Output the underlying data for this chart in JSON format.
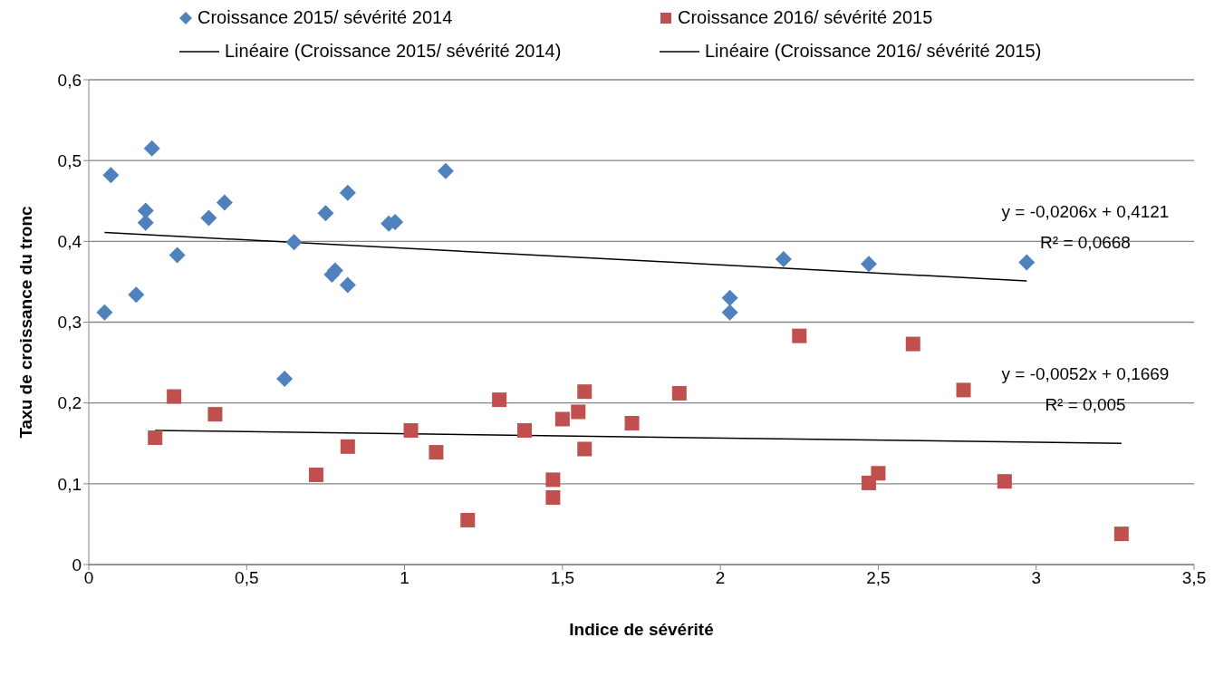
{
  "chart_data": {
    "type": "scatter",
    "xlabel": "Indice de sévérité",
    "ylabel": "Taxu de croissance du tronc",
    "xlim": [
      0,
      3.5
    ],
    "xticks": [
      0,
      {
        "value": 0.5,
        "label": "0,5"
      },
      1,
      {
        "value": 1.5,
        "label": "1,5"
      },
      2,
      {
        "value": 2.5,
        "label": "2,5"
      },
      3,
      {
        "value": 3.5,
        "label": "3,5"
      }
    ],
    "ylim": [
      0,
      0.6
    ],
    "yticks": [
      0,
      {
        "value": 0.1,
        "label": "0,1"
      },
      {
        "value": 0.2,
        "label": "0,2"
      },
      {
        "value": 0.3,
        "label": "0,3"
      },
      {
        "value": 0.4,
        "label": "0,4"
      },
      {
        "value": 0.5,
        "label": "0,5"
      },
      {
        "value": 0.6,
        "label": "0,6"
      }
    ],
    "grid": "y",
    "legend": "top",
    "series": [
      {
        "name": "Croissance 2015/ sévérité 2014",
        "color": "#4f81bd",
        "marker": "diamond",
        "x": [
          0.05,
          0.07,
          0.2,
          0.18,
          0.18,
          0.15,
          0.28,
          0.38,
          0.43,
          0.62,
          0.65,
          0.75,
          0.77,
          0.78,
          0.82,
          0.82,
          0.95,
          0.97,
          1.13,
          2.03,
          2.03,
          2.2,
          2.47,
          2.97
        ],
        "values": [
          0.312,
          0.482,
          0.515,
          0.438,
          0.423,
          0.334,
          0.383,
          0.429,
          0.448,
          0.23,
          0.399,
          0.435,
          0.359,
          0.364,
          0.46,
          0.346,
          0.422,
          0.424,
          0.487,
          0.33,
          0.312,
          0.378,
          0.372,
          0.374
        ]
      },
      {
        "name": "Croissance 2016/ sévérité 2015",
        "color": "#c0504d",
        "marker": "square",
        "x": [
          0.21,
          0.27,
          0.4,
          0.72,
          0.82,
          1.02,
          1.1,
          1.2,
          1.3,
          1.38,
          1.47,
          1.47,
          1.5,
          1.55,
          1.57,
          1.57,
          1.72,
          1.87,
          2.25,
          2.47,
          2.5,
          2.61,
          2.77,
          2.9,
          3.27
        ],
        "values": [
          0.157,
          0.208,
          0.186,
          0.111,
          0.146,
          0.166,
          0.139,
          0.055,
          0.204,
          0.166,
          0.105,
          0.083,
          0.18,
          0.189,
          0.214,
          0.143,
          0.175,
          0.212,
          0.283,
          0.101,
          0.113,
          0.273,
          0.216,
          0.103,
          0.038
        ]
      },
      {
        "name": "Linéaire (Croissance 2015/ sévérité 2014)",
        "type": "line",
        "color": "#000000",
        "marker": "none",
        "x": [
          0.05,
          2.97
        ],
        "values": [
          0.411,
          0.351
        ]
      },
      {
        "name": "Linéaire (Croissance 2016/ sévérité 2015)",
        "type": "line",
        "color": "#000000",
        "marker": "none",
        "x": [
          0.21,
          3.27
        ],
        "values": [
          0.166,
          0.15
        ]
      }
    ],
    "annotations": [
      "y = -0,0206x + 0,4121",
      "R² = 0,0668",
      "y = -0,0052x + 0,1669",
      "R² = 0,005"
    ]
  }
}
